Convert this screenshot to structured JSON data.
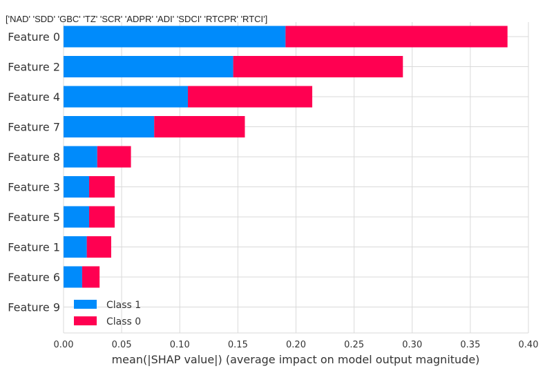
{
  "chart_data": {
    "type": "bar",
    "stacked": true,
    "orientation": "horizontal",
    "title": "['NAD' 'SDD' 'GBC' 'TZ' 'SCR' 'ADPR' 'ADI' 'SDCI' 'RTCPR' 'RTCI']",
    "categories": [
      "Feature 0",
      "Feature 2",
      "Feature 4",
      "Feature 7",
      "Feature 8",
      "Feature 3",
      "Feature 5",
      "Feature 1",
      "Feature 6",
      "Feature 9"
    ],
    "series": [
      {
        "name": "Class 1",
        "color": "#008bfb",
        "values": [
          0.191,
          0.146,
          0.107,
          0.078,
          0.029,
          0.022,
          0.022,
          0.02,
          0.016,
          0.0
        ]
      },
      {
        "name": "Class 0",
        "color": "#ff0051",
        "values": [
          0.191,
          0.146,
          0.107,
          0.078,
          0.029,
          0.022,
          0.022,
          0.021,
          0.015,
          0.0
        ]
      }
    ],
    "xlabel": "mean(|SHAP value|) (average impact on model output magnitude)",
    "xlim": [
      0.0,
      0.4
    ],
    "xticks": [
      "0.00",
      "0.05",
      "0.10",
      "0.15",
      "0.20",
      "0.25",
      "0.30",
      "0.35",
      "0.40"
    ],
    "grid": true,
    "legend_position": "lower-left"
  }
}
